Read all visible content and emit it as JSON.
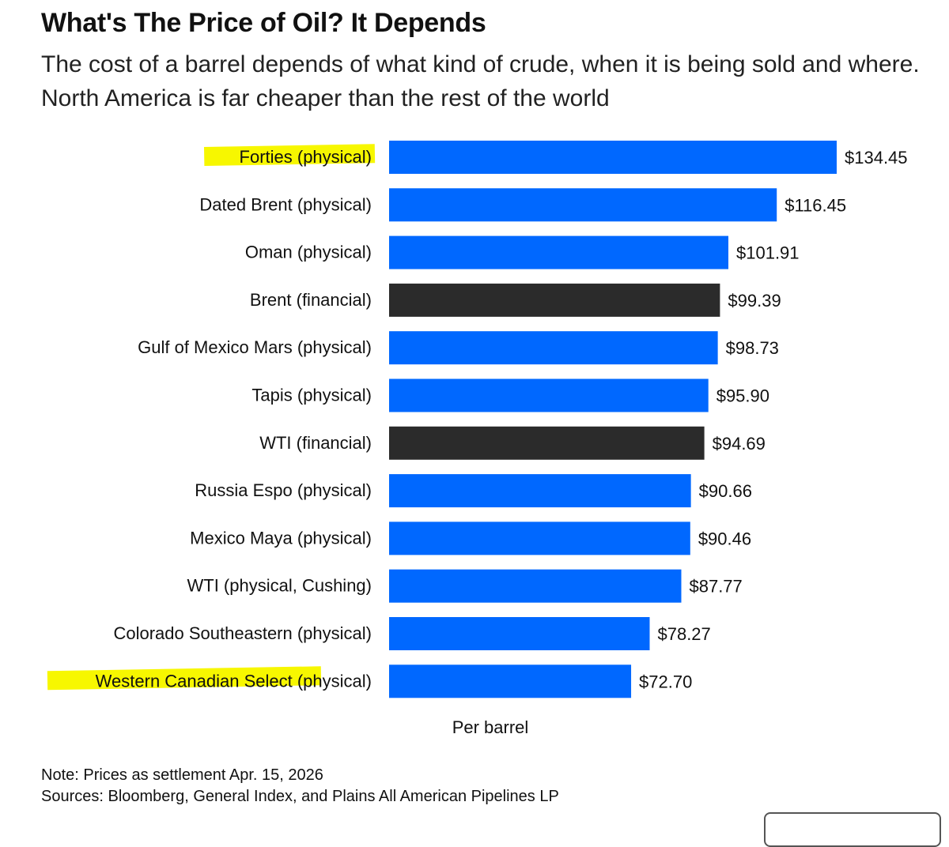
{
  "chart_data": {
    "type": "bar",
    "orientation": "horizontal",
    "title": "What's The Price of Oil? It Depends",
    "subtitle": "The cost of a barrel depends of what kind of crude, when it is being sold and where. North America is far cheaper than the rest of the world",
    "xlabel": "Per barrel",
    "xlim": [
      0,
      134.45
    ],
    "grid": false,
    "categories": [
      "Forties (physical)",
      "Dated Brent (physical)",
      "Oman (physical)",
      "Brent (financial)",
      "Gulf of Mexico Mars (physical)",
      "Tapis (physical)",
      "WTI (financial)",
      "Russia Espo (physical)",
      "Mexico Maya (physical)",
      "WTI (physical, Cushing)",
      "Colorado Southeastern (physical)",
      "Western Canadian Select (physical)"
    ],
    "values": [
      134.45,
      116.45,
      101.91,
      99.39,
      98.73,
      95.9,
      94.69,
      90.66,
      90.46,
      87.77,
      78.27,
      72.7
    ],
    "value_labels": [
      "$134.45",
      "$116.45",
      "$101.91",
      "$99.39",
      "$98.73",
      "$95.90",
      "$94.69",
      "$90.66",
      "$90.46",
      "$87.77",
      "$78.27",
      "$72.70"
    ],
    "bar_kind": [
      "physical",
      "physical",
      "physical",
      "financial",
      "physical",
      "physical",
      "financial",
      "physical",
      "physical",
      "physical",
      "physical",
      "physical"
    ],
    "highlighted_categories": [
      "Forties (physical)",
      "Western Canadian Select (physical)"
    ],
    "note": "Note: Prices as settlement Apr. 15, 2026",
    "sources": "Sources: Bloomberg, General Index, and Plains All American Pipelines LP"
  },
  "colors": {
    "physical": "#0068ff",
    "financial": "#2b2b2b",
    "highlight": "#f7f700"
  }
}
